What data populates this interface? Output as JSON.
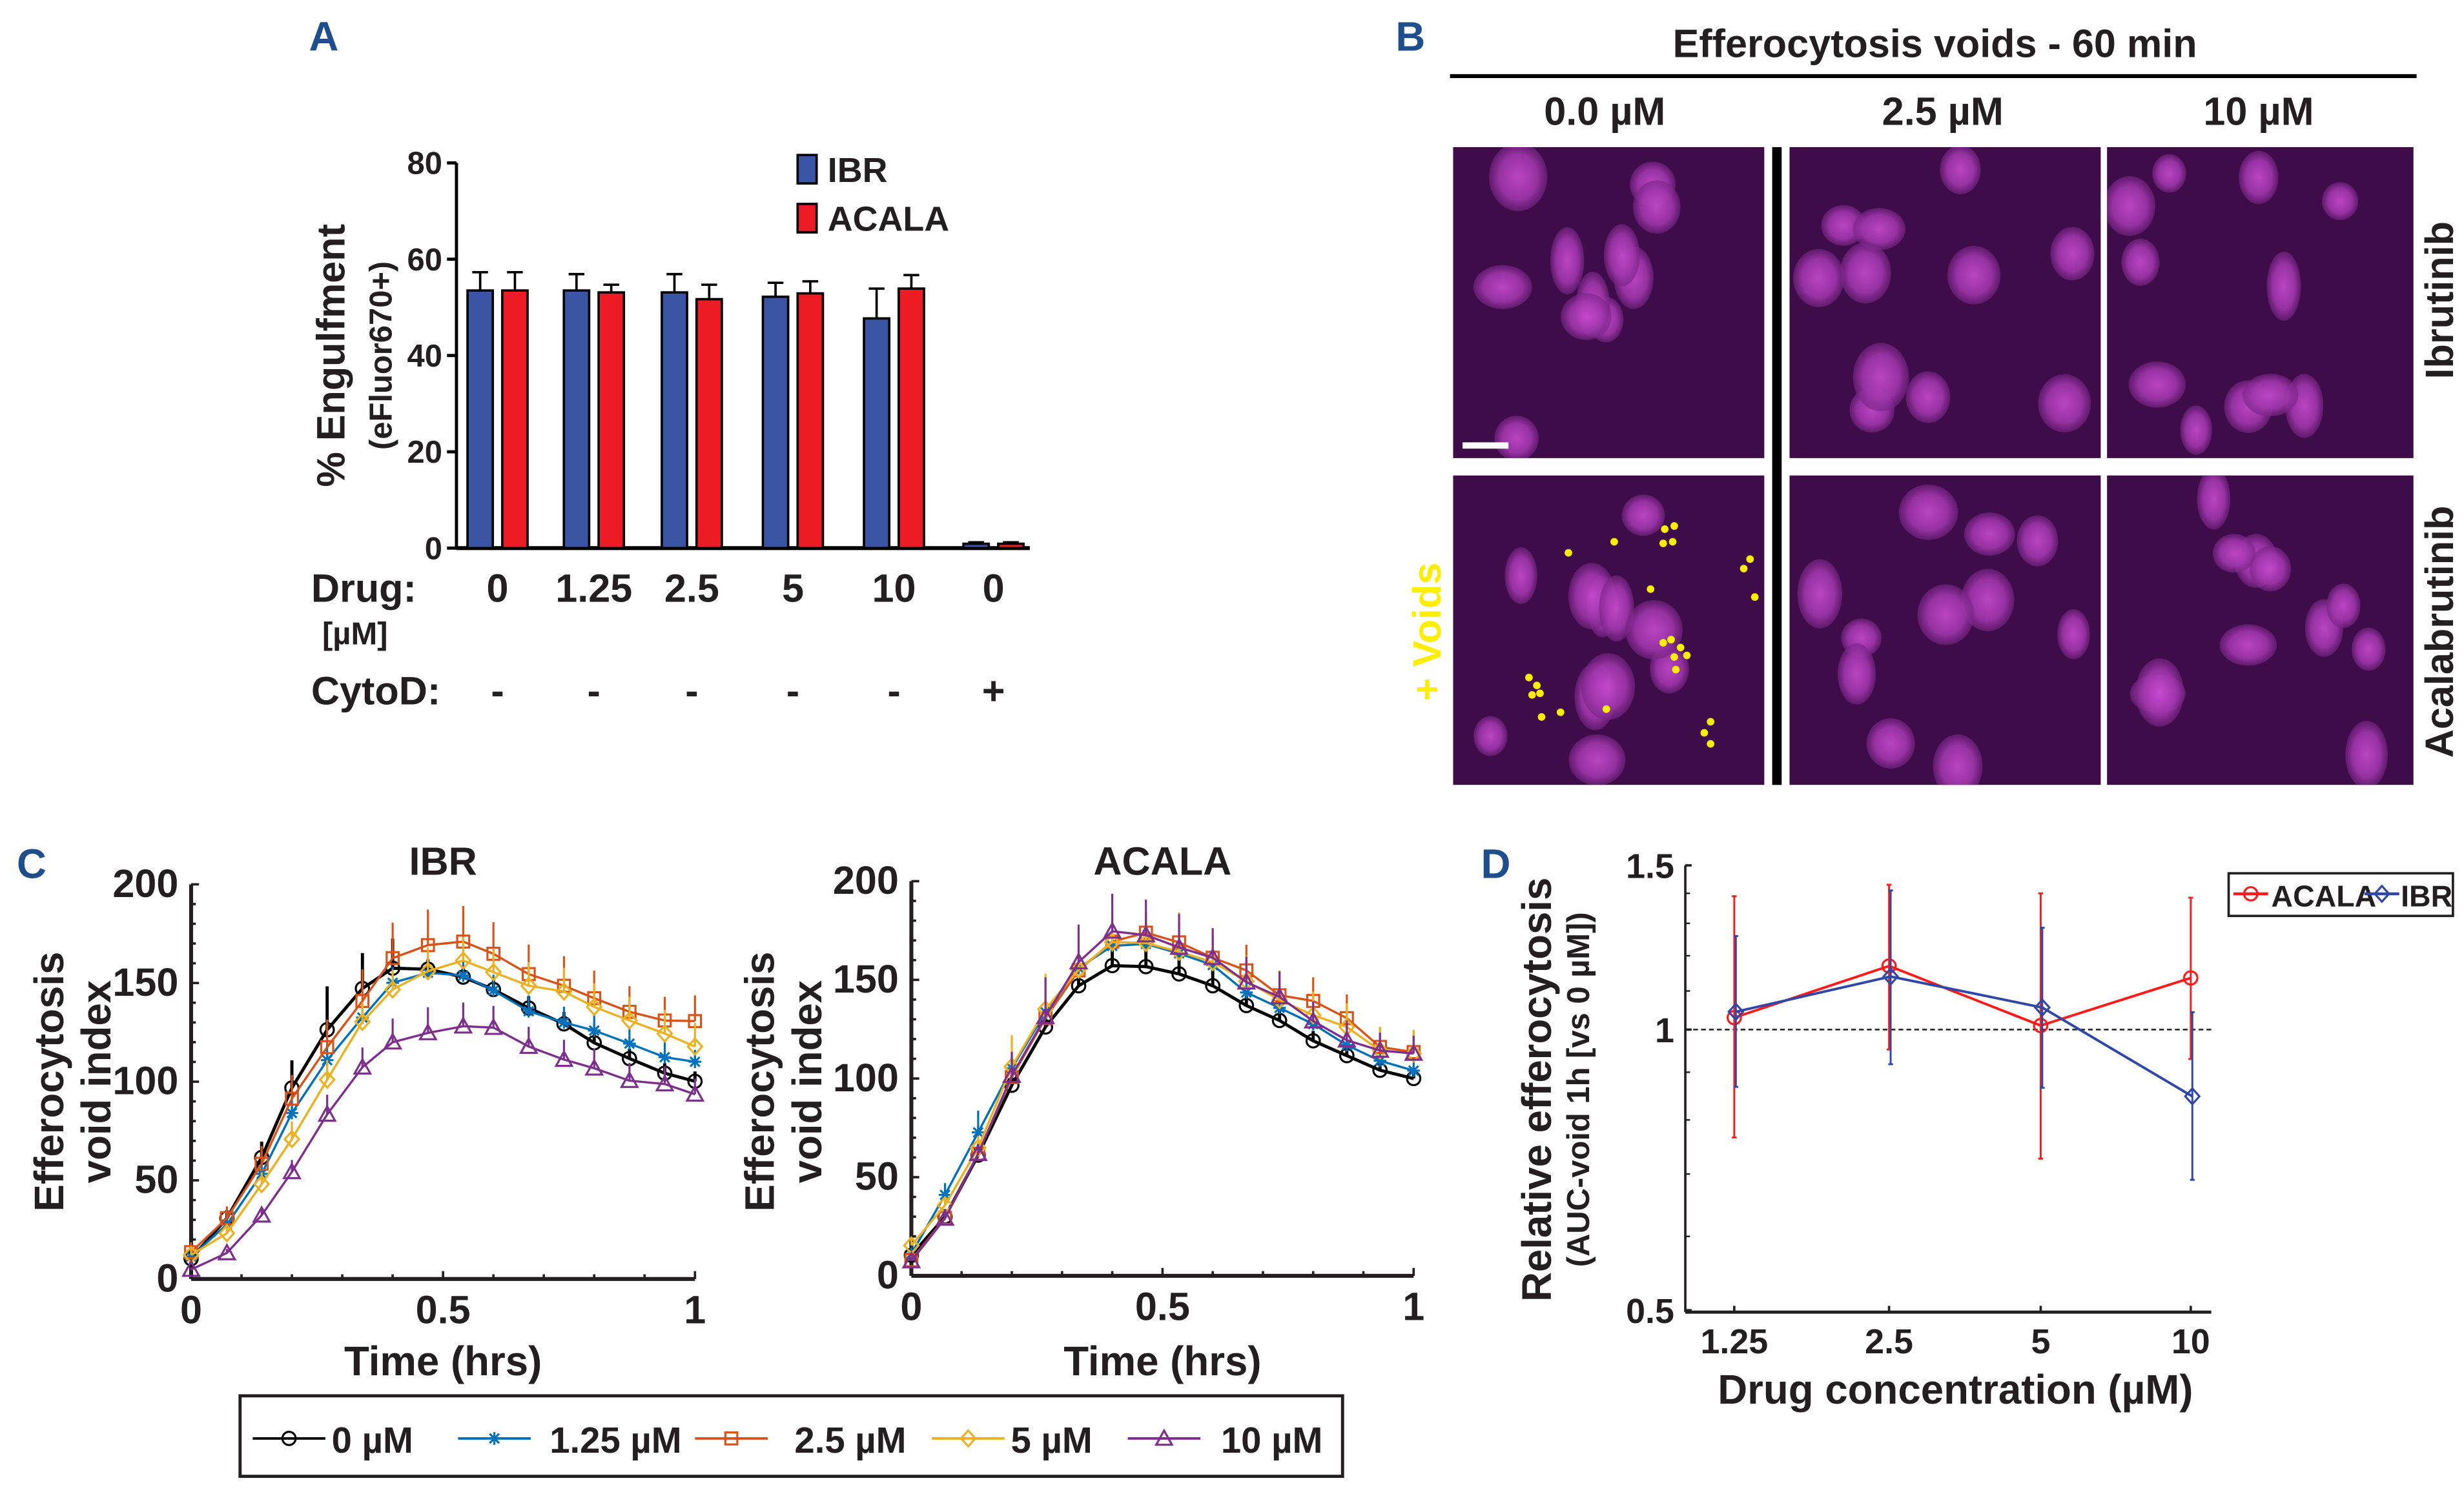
{
  "panel_labels": {
    "a": "A",
    "b": "B",
    "c": "C",
    "d": "D"
  },
  "colors": {
    "ibr_bar": "#3a55a4",
    "acala_bar": "#ed1c24",
    "s0": "#000000",
    "s125": "#0072BD",
    "s25": "#D95319",
    "s5": "#EDB120",
    "s10": "#7E2F8E",
    "d_acala": "#ff1a1a",
    "d_ibr": "#2f47a8",
    "voids": "#ffee00",
    "micrograph_bg": "#3e0c48"
  },
  "micrographs": {
    "title": "Efferocytosis voids - 60 min",
    "columns": [
      "0.0 µM",
      "2.5 µM",
      "10 µM"
    ],
    "rows": [
      "Ibrutinib",
      "Acalabrutinib"
    ],
    "voids_label": "+ Voids"
  },
  "chart_data": [
    {
      "type": "bar",
      "panel": "A",
      "ylabel": "% Engulfment",
      "ylabel2": "(eFluor670+)",
      "ylim": [
        0,
        80
      ],
      "yticks": [
        "0",
        "20",
        "40",
        "60",
        "80"
      ],
      "row_labels": {
        "drug": "Drug:",
        "unit": "[µM]",
        "cytod": "CytoD:"
      },
      "categories": [
        "0",
        "1.25",
        "2.5",
        "5",
        "10",
        "0"
      ],
      "cytod": [
        "-",
        "-",
        "-",
        "-",
        "-",
        "+"
      ],
      "legend_position": "top-right",
      "series": [
        {
          "name": "IBR",
          "values": [
            53.5,
            53.5,
            53.1,
            52.2,
            47.7,
            0.9
          ],
          "err": [
            3.8,
            3.4,
            3.8,
            2.9,
            6.2,
            0.3
          ]
        },
        {
          "name": "ACALA",
          "values": [
            53.5,
            53.1,
            51.7,
            52.9,
            53.9,
            0.9
          ],
          "err": [
            3.8,
            1.6,
            3.0,
            2.5,
            2.8,
            0.3
          ]
        }
      ]
    },
    {
      "type": "line",
      "panel": "C",
      "title": "IBR",
      "xlabel": "Time (hrs)",
      "ylabel": "Efferocytosis",
      "ylabel2": "void index",
      "xlim": [
        0,
        1
      ],
      "ylim": [
        0,
        200
      ],
      "xticks": [
        "0",
        "0.5",
        "1"
      ],
      "yticks": [
        "0",
        "50",
        "100",
        "150",
        "200"
      ],
      "x": [
        0,
        0.071,
        0.14,
        0.2,
        0.27,
        0.34,
        0.4,
        0.47,
        0.54,
        0.6,
        0.67,
        0.74,
        0.8,
        0.87,
        0.94,
        1.0
      ],
      "series": [
        {
          "name": "0 µM",
          "values": [
            10.3,
            30.8,
            61.6,
            96.8,
            126.3,
            147.2,
            157.5,
            157.0,
            153.0,
            146.7,
            137.3,
            129.3,
            119.7,
            111.7,
            104.3,
            100.2
          ],
          "err": [
            2,
            4,
            8,
            14,
            22,
            18,
            15,
            5,
            5,
            5,
            6,
            6,
            6,
            5,
            5,
            5
          ]
        },
        {
          "name": "1.25 µM",
          "values": [
            11.4,
            27.6,
            53.3,
            84.1,
            110.9,
            132.5,
            150.1,
            155.2,
            153.8,
            146.2,
            135.7,
            130.0,
            125.9,
            119.3,
            112.4,
            110.1
          ],
          "err": [
            2,
            3,
            5,
            8,
            8,
            8,
            8,
            8,
            8,
            8,
            8,
            8,
            8,
            8,
            8,
            6
          ]
        },
        {
          "name": "2.5 µM",
          "values": [
            13.6,
            30.8,
            58.4,
            91.4,
            117.5,
            140.9,
            162.6,
            169.2,
            171.0,
            164.8,
            154.5,
            148.6,
            142.3,
            135.4,
            131.0,
            130.7
          ],
          "err": [
            5,
            6,
            9,
            12,
            14,
            16,
            18,
            18,
            18,
            16,
            15,
            15,
            14,
            13,
            12,
            13
          ]
        },
        {
          "name": "5 µM",
          "values": [
            12.2,
            23.2,
            48.1,
            70.9,
            101.0,
            130.3,
            146.7,
            156.0,
            161.4,
            155.5,
            148.6,
            145.7,
            137.9,
            131.0,
            124.4,
            117.8
          ],
          "err": [
            3,
            3,
            6,
            9,
            10,
            10,
            10,
            12,
            12,
            12,
            12,
            12,
            12,
            12,
            12,
            12
          ]
        },
        {
          "name": "10 µM",
          "values": [
            4.8,
            13.2,
            32.3,
            54.3,
            83.4,
            107.3,
            120.0,
            124.7,
            128.1,
            127.4,
            117.8,
            111.2,
            106.8,
            100.5,
            98.8,
            93.6
          ],
          "err": [
            1,
            2,
            4,
            6,
            10,
            10,
            12,
            13,
            12,
            11,
            10,
            10,
            10,
            9,
            9,
            8
          ]
        }
      ],
      "legend_position": "bottom"
    },
    {
      "type": "line",
      "panel": "C",
      "title": "ACALA",
      "xlabel": "Time (hrs)",
      "ylabel": "Efferocytosis",
      "ylabel2": "void index",
      "xlim": [
        0,
        1
      ],
      "ylim": [
        0,
        200
      ],
      "xticks": [
        "0",
        "0.5",
        "1"
      ],
      "yticks": [
        "0",
        "50",
        "100",
        "150",
        "200"
      ],
      "x": [
        0,
        0.067,
        0.133,
        0.2,
        0.267,
        0.333,
        0.4,
        0.467,
        0.533,
        0.6,
        0.667,
        0.733,
        0.8,
        0.867,
        0.933,
        1.0
      ],
      "series": [
        {
          "name": "0 µM",
          "values": [
            10.4,
            29.9,
            61.2,
            96.6,
            126.1,
            147.0,
            157.2,
            156.7,
            153.0,
            147.0,
            137.0,
            129.4,
            119.1,
            111.6,
            104.2,
            100.0
          ],
          "err": [
            2,
            3,
            5,
            5,
            5,
            5,
            10,
            10,
            10,
            8,
            5,
            5,
            5,
            4,
            4,
            3
          ]
        },
        {
          "name": "1.25 µM",
          "values": [
            11.2,
            41.0,
            72.7,
            105.2,
            133.6,
            156.0,
            167.2,
            168.2,
            163.4,
            157.5,
            143.6,
            135.8,
            127.6,
            116.9,
            109.0,
            104.0
          ],
          "err": [
            3,
            6,
            11,
            8,
            6,
            6,
            6,
            6,
            6,
            6,
            6,
            6,
            6,
            6,
            6,
            5
          ]
        },
        {
          "name": "2.5 µM",
          "values": [
            7.9,
            29.4,
            61.9,
            100.7,
            130.6,
            154.8,
            169.4,
            173.9,
            169.0,
            161.2,
            154.8,
            142.2,
            139.3,
            130.6,
            116.0,
            113.4
          ],
          "err": [
            2,
            3,
            5,
            8,
            10,
            10,
            10,
            10,
            10,
            10,
            13,
            12,
            12,
            12,
            10,
            10
          ]
        },
        {
          "name": "5 µM",
          "values": [
            15.4,
            35.8,
            64.9,
            106.0,
            135.1,
            155.2,
            169.1,
            168.7,
            164.2,
            159.0,
            149.3,
            139.8,
            132.1,
            126.1,
            114.2,
            112.7
          ],
          "err": [
            3,
            4,
            6,
            16,
            18,
            12,
            12,
            12,
            20,
            14,
            13,
            15,
            12,
            12,
            12,
            12
          ]
        },
        {
          "name": "10 µM",
          "values": [
            7.5,
            29.1,
            61.9,
            101.5,
            131.3,
            159.0,
            174.6,
            172.7,
            166.4,
            161.2,
            148.8,
            141.3,
            129.1,
            119.4,
            114.2,
            112.7
          ],
          "err": [
            2,
            3,
            5,
            12,
            20,
            19,
            19,
            18,
            17,
            15,
            13,
            13,
            10,
            10,
            9,
            9
          ]
        }
      ],
      "legend_position": "bottom"
    },
    {
      "type": "line",
      "panel": "D",
      "xlabel": "Drug concentration (µM)",
      "ylabel": "Relative efferocytosis",
      "ylabel2": "(AUC-void 1h [vs 0 µM])",
      "yscale": "log",
      "ylim": [
        0.5,
        1.5
      ],
      "yticks": [
        "0.5",
        "1",
        "1.5"
      ],
      "reference_line": 1,
      "categories": [
        "1.25",
        "2.5",
        "5",
        "10"
      ],
      "legend_position": "top-right (outside)",
      "series": [
        {
          "name": "ACALA",
          "marker": "circle",
          "values": [
            1.03,
            1.17,
            1.01,
            1.136
          ],
          "upper": [
            1.39,
            1.43,
            1.4,
            1.385
          ],
          "lower": [
            0.766,
            0.952,
            0.727,
            0.93
          ]
        },
        {
          "name": "IBR",
          "marker": "diamond",
          "values": [
            1.045,
            1.14,
            1.056,
            0.848
          ],
          "upper": [
            1.26,
            1.41,
            1.286,
            1.044
          ],
          "lower": [
            0.868,
            0.918,
            0.866,
            0.69
          ]
        }
      ]
    }
  ]
}
